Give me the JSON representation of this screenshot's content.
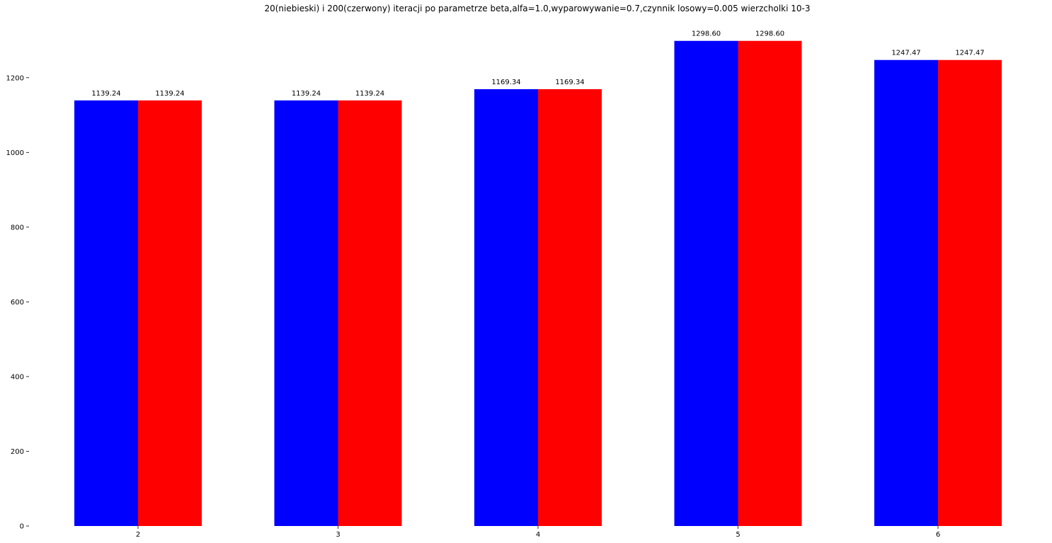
{
  "chart_data": {
    "type": "bar",
    "title": "20(niebieski) i 200(czerwony) iteracji po parametrze beta,alfa=1.0,wyparowywanie=0.7,czynnik losowy=0.005  wierzcholki 10-3",
    "xlabel": "",
    "ylabel": "",
    "categories": [
      "2",
      "3",
      "4",
      "5",
      "6"
    ],
    "series": [
      {
        "color": "#0000ff",
        "values": [
          1139.24,
          1139.24,
          1169.34,
          1298.6,
          1247.47
        ],
        "labels": [
          "1139.24",
          "1139.24",
          "1169.34",
          "1298.60",
          "1247.47"
        ]
      },
      {
        "color": "#ff0000",
        "values": [
          1139.24,
          1139.24,
          1169.34,
          1298.6,
          1247.47
        ],
        "labels": [
          "1139.24",
          "1139.24",
          "1169.34",
          "1298.60",
          "1247.47"
        ]
      }
    ],
    "ylim": [
      0,
      1300
    ],
    "yticks": [
      0,
      200,
      400,
      600,
      800,
      1000,
      1200
    ],
    "ytick_labels": [
      "0",
      "200",
      "400",
      "600",
      "800",
      "1000",
      "1200"
    ],
    "grid": false,
    "legend": "none"
  }
}
